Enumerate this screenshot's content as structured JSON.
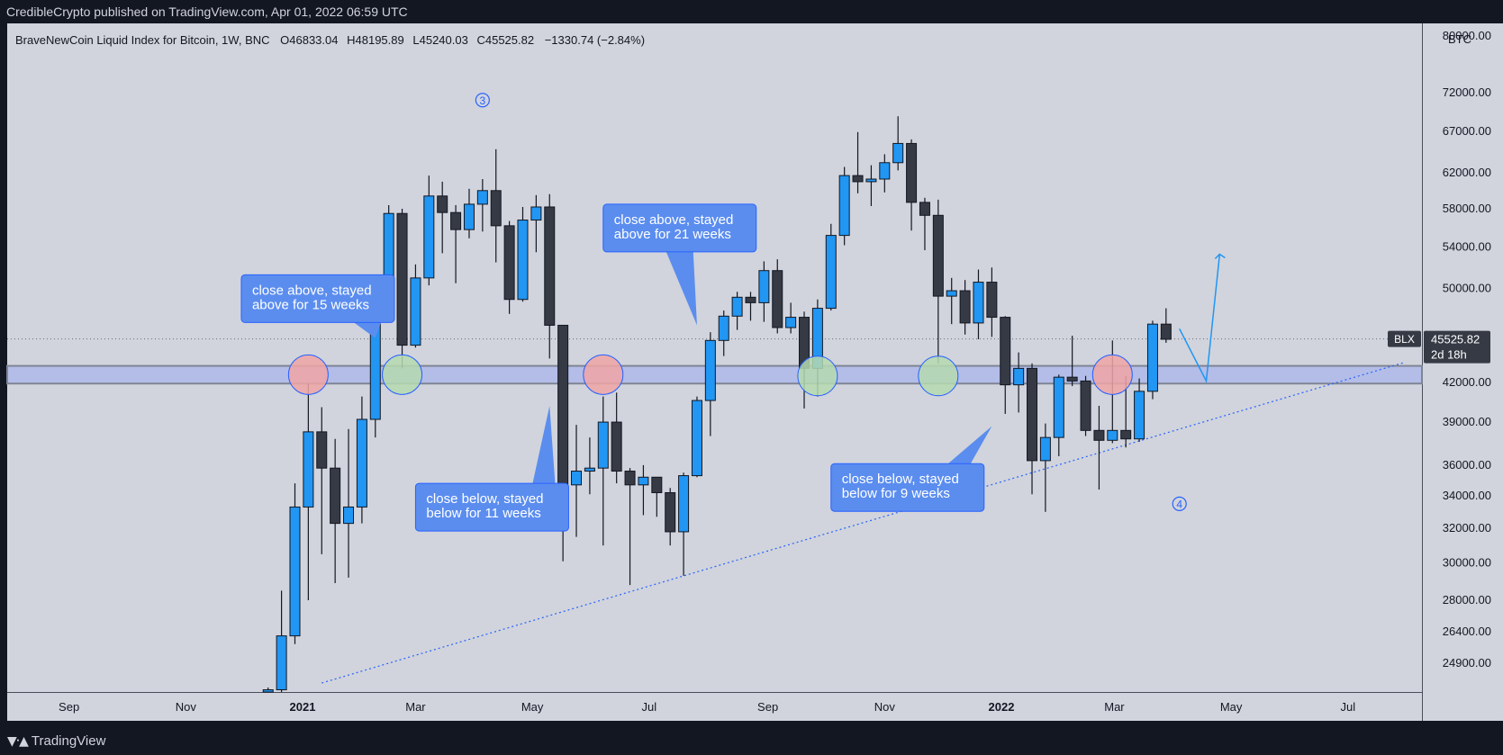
{
  "publisher": "CredibleCrypto published on TradingView.com, Apr 01, 2022 06:59 UTC",
  "footer": {
    "brand": "TradingView",
    "logo_icon": "tradingview-logo-icon"
  },
  "colors": {
    "background": "#d1d4dc",
    "up_candle": "#2196f3",
    "down_candle": "#363a45",
    "callout": "#5b8def",
    "zone": "#b3bde8",
    "circle_red": "#f0a5a5",
    "circle_green": "#b5d9b0"
  },
  "chart_data": {
    "type": "candlestick",
    "title": "BraveNewCoin Liquid Index for Bitcoin, 1W, BNC",
    "ohlc_header": {
      "o_label": "O",
      "o": "46833.04",
      "h_label": "H",
      "h": "48195.89",
      "l_label": "L",
      "l": "45240.03",
      "c_label": "C",
      "c": "45525.82",
      "change": "−1330.74 (−2.84%)"
    },
    "currency_label": "BTC",
    "symbol_tag": "BLX",
    "last_price_label": "45525.82",
    "countdown": "2d 18h",
    "y_scale": "log",
    "ylim": [
      24000,
      80000
    ],
    "y_ticks": [
      80000,
      72000,
      67000,
      62000,
      58000,
      54000,
      50000,
      42000,
      39000,
      36000,
      34000,
      32000,
      30000,
      28000,
      26400,
      24900
    ],
    "y_tick_labels": [
      "80000.00",
      "72000.00",
      "67000.00",
      "62000.00",
      "58000.00",
      "54000.00",
      "50000.00",
      "42000.00",
      "39000.00",
      "36000.00",
      "34000.00",
      "32000.00",
      "30000.00",
      "28000.00",
      "26400.00",
      "24900.00"
    ],
    "x_ticks": [
      {
        "label": "Sep",
        "date": "2020-09-01",
        "bold": false
      },
      {
        "label": "Nov",
        "date": "2020-11-01",
        "bold": false
      },
      {
        "label": "2021",
        "date": "2021-01-01",
        "bold": true
      },
      {
        "label": "Mar",
        "date": "2021-03-01",
        "bold": false
      },
      {
        "label": "May",
        "date": "2021-05-01",
        "bold": false
      },
      {
        "label": "Jul",
        "date": "2021-07-01",
        "bold": false
      },
      {
        "label": "Sep",
        "date": "2021-09-01",
        "bold": false
      },
      {
        "label": "Nov",
        "date": "2021-11-01",
        "bold": false
      },
      {
        "label": "2022",
        "date": "2022-01-01",
        "bold": true
      },
      {
        "label": "Mar",
        "date": "2022-03-01",
        "bold": false
      },
      {
        "label": "May",
        "date": "2022-05-01",
        "bold": false
      },
      {
        "label": "Jul",
        "date": "2022-07-01",
        "bold": false
      }
    ],
    "candles": [
      {
        "date": "2020-12-14",
        "o": 19300,
        "h": 23800,
        "l": 19000,
        "c": 23700
      },
      {
        "date": "2020-12-21",
        "o": 23700,
        "h": 28500,
        "l": 22300,
        "c": 26200
      },
      {
        "date": "2020-12-28",
        "o": 26200,
        "h": 34800,
        "l": 25800,
        "c": 33300
      },
      {
        "date": "2021-01-04",
        "o": 33300,
        "h": 41900,
        "l": 28000,
        "c": 38300
      },
      {
        "date": "2021-01-11",
        "o": 38300,
        "h": 40100,
        "l": 30500,
        "c": 35800
      },
      {
        "date": "2021-01-18",
        "o": 35800,
        "h": 37800,
        "l": 28900,
        "c": 32300
      },
      {
        "date": "2021-01-25",
        "o": 32300,
        "h": 38500,
        "l": 29200,
        "c": 33300
      },
      {
        "date": "2021-02-01",
        "o": 33300,
        "h": 40900,
        "l": 32300,
        "c": 39200
      },
      {
        "date": "2021-02-08",
        "o": 39200,
        "h": 49500,
        "l": 37900,
        "c": 48900
      },
      {
        "date": "2021-02-15",
        "o": 48900,
        "h": 58400,
        "l": 47100,
        "c": 57500
      },
      {
        "date": "2021-02-22",
        "o": 57500,
        "h": 58000,
        "l": 43100,
        "c": 45000
      },
      {
        "date": "2021-03-01",
        "o": 45000,
        "h": 52300,
        "l": 44800,
        "c": 51000
      },
      {
        "date": "2021-03-08",
        "o": 51000,
        "h": 61700,
        "l": 50300,
        "c": 59400
      },
      {
        "date": "2021-03-15",
        "o": 59400,
        "h": 61000,
        "l": 53400,
        "c": 57600
      },
      {
        "date": "2021-03-22",
        "o": 57600,
        "h": 58400,
        "l": 50500,
        "c": 55800
      },
      {
        "date": "2021-03-29",
        "o": 55800,
        "h": 60200,
        "l": 54900,
        "c": 58500
      },
      {
        "date": "2021-04-05",
        "o": 58500,
        "h": 61300,
        "l": 55600,
        "c": 60000
      },
      {
        "date": "2021-04-12",
        "o": 60000,
        "h": 64800,
        "l": 52500,
        "c": 56200
      },
      {
        "date": "2021-04-19",
        "o": 56200,
        "h": 56700,
        "l": 47700,
        "c": 49000
      },
      {
        "date": "2021-04-26",
        "o": 49000,
        "h": 58200,
        "l": 48800,
        "c": 56800
      },
      {
        "date": "2021-05-03",
        "o": 56800,
        "h": 59500,
        "l": 53500,
        "c": 58200
      },
      {
        "date": "2021-05-10",
        "o": 58200,
        "h": 59600,
        "l": 43900,
        "c": 46700
      },
      {
        "date": "2021-05-17",
        "o": 46700,
        "h": 46700,
        "l": 30100,
        "c": 34700
      },
      {
        "date": "2021-05-24",
        "o": 34700,
        "h": 38800,
        "l": 31500,
        "c": 35600
      },
      {
        "date": "2021-05-31",
        "o": 35600,
        "h": 37900,
        "l": 34100,
        "c": 35800
      },
      {
        "date": "2021-06-07",
        "o": 35800,
        "h": 40900,
        "l": 31000,
        "c": 39000
      },
      {
        "date": "2021-06-14",
        "o": 39000,
        "h": 41200,
        "l": 34800,
        "c": 35600
      },
      {
        "date": "2021-06-21",
        "o": 35600,
        "h": 35800,
        "l": 28800,
        "c": 34700
      },
      {
        "date": "2021-06-28",
        "o": 34700,
        "h": 36000,
        "l": 32800,
        "c": 35200
      },
      {
        "date": "2021-07-05",
        "o": 35200,
        "h": 35200,
        "l": 32700,
        "c": 34200
      },
      {
        "date": "2021-07-12",
        "o": 34200,
        "h": 34500,
        "l": 31000,
        "c": 31800
      },
      {
        "date": "2021-07-19",
        "o": 31800,
        "h": 35500,
        "l": 29300,
        "c": 35300
      },
      {
        "date": "2021-07-26",
        "o": 35300,
        "h": 40900,
        "l": 35200,
        "c": 40600
      },
      {
        "date": "2021-08-02",
        "o": 40600,
        "h": 46100,
        "l": 38000,
        "c": 45400
      },
      {
        "date": "2021-08-09",
        "o": 45400,
        "h": 48000,
        "l": 44100,
        "c": 47500
      },
      {
        "date": "2021-08-16",
        "o": 47500,
        "h": 49700,
        "l": 46300,
        "c": 49200
      },
      {
        "date": "2021-08-23",
        "o": 49200,
        "h": 49700,
        "l": 47100,
        "c": 48700
      },
      {
        "date": "2021-08-30",
        "o": 48700,
        "h": 52600,
        "l": 47000,
        "c": 51700
      },
      {
        "date": "2021-09-06",
        "o": 51700,
        "h": 52800,
        "l": 46000,
        "c": 46500
      },
      {
        "date": "2021-09-13",
        "o": 46500,
        "h": 48700,
        "l": 46000,
        "c": 47400
      },
      {
        "date": "2021-09-20",
        "o": 47400,
        "h": 47900,
        "l": 40000,
        "c": 43100
      },
      {
        "date": "2021-09-27",
        "o": 43100,
        "h": 49000,
        "l": 40900,
        "c": 48200
      },
      {
        "date": "2021-10-04",
        "o": 48200,
        "h": 56400,
        "l": 48000,
        "c": 55200
      },
      {
        "date": "2021-10-11",
        "o": 55200,
        "h": 62700,
        "l": 54200,
        "c": 61700
      },
      {
        "date": "2021-10-18",
        "o": 61700,
        "h": 66900,
        "l": 59700,
        "c": 61000
      },
      {
        "date": "2021-10-25",
        "o": 61000,
        "h": 62900,
        "l": 58300,
        "c": 61300
      },
      {
        "date": "2021-11-01",
        "o": 61300,
        "h": 64200,
        "l": 59800,
        "c": 63200
      },
      {
        "date": "2021-11-08",
        "o": 63200,
        "h": 68900,
        "l": 62300,
        "c": 65500
      },
      {
        "date": "2021-11-15",
        "o": 65500,
        "h": 66000,
        "l": 55700,
        "c": 58700
      },
      {
        "date": "2021-11-22",
        "o": 58700,
        "h": 59200,
        "l": 53700,
        "c": 57300
      },
      {
        "date": "2021-11-29",
        "o": 57300,
        "h": 59000,
        "l": 43500,
        "c": 49300
      },
      {
        "date": "2021-12-06",
        "o": 49300,
        "h": 51000,
        "l": 46800,
        "c": 49800
      },
      {
        "date": "2021-12-13",
        "o": 49800,
        "h": 50800,
        "l": 45900,
        "c": 46900
      },
      {
        "date": "2021-12-20",
        "o": 46900,
        "h": 51800,
        "l": 45500,
        "c": 50600
      },
      {
        "date": "2021-12-27",
        "o": 50600,
        "h": 52000,
        "l": 45700,
        "c": 47400
      },
      {
        "date": "2022-01-03",
        "o": 47400,
        "h": 47500,
        "l": 39600,
        "c": 41800
      },
      {
        "date": "2022-01-10",
        "o": 41800,
        "h": 44400,
        "l": 39700,
        "c": 43100
      },
      {
        "date": "2022-01-17",
        "o": 43100,
        "h": 43500,
        "l": 34100,
        "c": 36300
      },
      {
        "date": "2022-01-24",
        "o": 36300,
        "h": 38900,
        "l": 33000,
        "c": 37900
      },
      {
        "date": "2022-01-31",
        "o": 37900,
        "h": 42600,
        "l": 36600,
        "c": 42400
      },
      {
        "date": "2022-02-07",
        "o": 42400,
        "h": 45800,
        "l": 41700,
        "c": 42100
      },
      {
        "date": "2022-02-14",
        "o": 42100,
        "h": 42500,
        "l": 38000,
        "c": 38400
      },
      {
        "date": "2022-02-21",
        "o": 38400,
        "h": 40200,
        "l": 34400,
        "c": 37700
      },
      {
        "date": "2022-02-28",
        "o": 37700,
        "h": 45400,
        "l": 37500,
        "c": 38400
      },
      {
        "date": "2022-03-07",
        "o": 38400,
        "h": 42500,
        "l": 37200,
        "c": 37800
      },
      {
        "date": "2022-03-14",
        "o": 37800,
        "h": 42300,
        "l": 37600,
        "c": 41300
      },
      {
        "date": "2022-03-21",
        "o": 41300,
        "h": 47100,
        "l": 40700,
        "c": 46800
      },
      {
        "date": "2022-03-28",
        "o": 46800,
        "h": 48200,
        "l": 45200,
        "c": 45500
      }
    ],
    "zone": {
      "low": 41900,
      "high": 43300
    },
    "price_line": 45525.82,
    "trendline": [
      {
        "date": "2021-01-11",
        "price": 24000
      },
      {
        "date": "2022-07-31",
        "price": 43600
      }
    ],
    "circles": [
      {
        "date": "2021-01-04",
        "price": 42600,
        "color": "red"
      },
      {
        "date": "2021-02-22",
        "price": 42600,
        "color": "green"
      },
      {
        "date": "2021-06-07",
        "price": 42600,
        "color": "red"
      },
      {
        "date": "2021-09-27",
        "price": 42500,
        "color": "green"
      },
      {
        "date": "2021-11-29",
        "price": 42500,
        "color": "green"
      },
      {
        "date": "2022-02-28",
        "price": 42600,
        "color": "red"
      }
    ],
    "wave_labels": [
      {
        "text": "3",
        "date": "2021-04-05",
        "price": 71000
      },
      {
        "text": "4",
        "date": "2022-04-04",
        "price": 33500
      }
    ],
    "callouts": [
      {
        "lines": [
          "close above, stayed",
          "above for 15 weeks"
        ],
        "date": "2020-11-30",
        "price": 51300,
        "tail": "right-down",
        "tip": {
          "date": "2021-02-08",
          "price": 45600
        }
      },
      {
        "lines": [
          "close below, stayed",
          "below for 11 weeks"
        ],
        "date": "2021-03-01",
        "price": 34800,
        "tail": "right-up",
        "tip": {
          "date": "2021-05-10",
          "price": 40200
        }
      },
      {
        "lines": [
          "close above, stayed",
          "above for 21 weeks"
        ],
        "date": "2021-06-07",
        "price": 58500,
        "tail": "down",
        "tip": {
          "date": "2021-07-26",
          "price": 46700
        }
      },
      {
        "lines": [
          "close below, stayed",
          "below for 9 weeks"
        ],
        "date": "2021-10-04",
        "price": 36100,
        "tail": "right-up",
        "tip": {
          "date": "2021-12-27",
          "price": 38700
        }
      }
    ],
    "projection": [
      {
        "date": "2022-04-04",
        "price": 46400
      },
      {
        "date": "2022-04-18",
        "price": 42100
      },
      {
        "date": "2022-04-25",
        "price": 53300
      }
    ]
  }
}
